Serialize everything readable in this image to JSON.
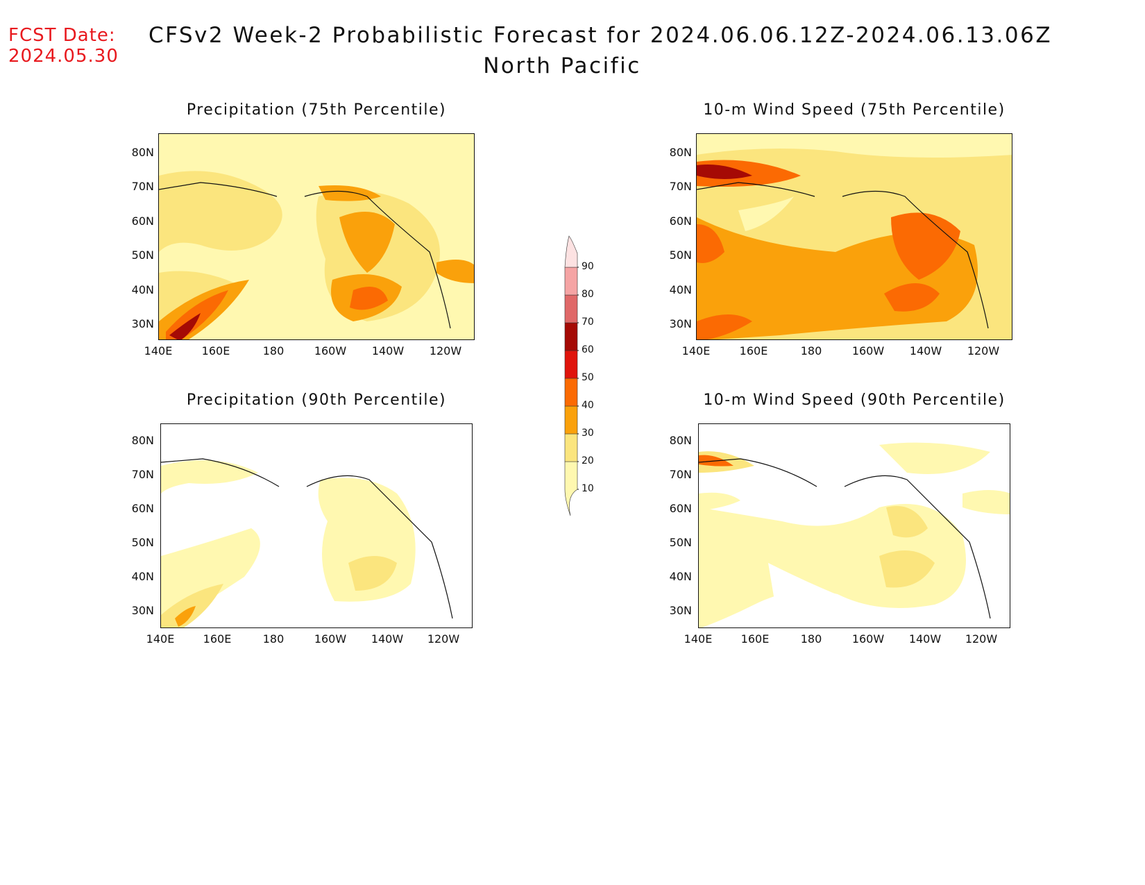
{
  "header": {
    "fcst_label": "FCST Date:",
    "fcst_date": "2024.05.30",
    "title": "CFSv2 Week-2 Probabilistic Forecast for 2024.06.06.12Z-2024.06.13.06Z",
    "region": "North Pacific"
  },
  "axes": {
    "lat_labels": [
      "80N",
      "70N",
      "60N",
      "50N",
      "40N",
      "30N"
    ],
    "lon_labels": [
      "140E",
      "160E",
      "180",
      "160W",
      "140W",
      "120W"
    ]
  },
  "panels": [
    {
      "title": "Precipitation (75th Percentile)"
    },
    {
      "title": "10-m Wind Speed (75th Percentile)"
    },
    {
      "title": "Precipitation (90th Percentile)"
    },
    {
      "title": "10-m Wind Speed (90th Percentile)"
    }
  ],
  "colorbar": {
    "levels": [
      "10",
      "20",
      "30",
      "40",
      "50",
      "60",
      "70",
      "80",
      "90"
    ],
    "colors": [
      "#fff8b0",
      "#fbe57e",
      "#faa10b",
      "#fb6a03",
      "#e0140c",
      "#a50a05",
      "#e06868",
      "#f5a4a4",
      "#fde2e2"
    ]
  }
}
